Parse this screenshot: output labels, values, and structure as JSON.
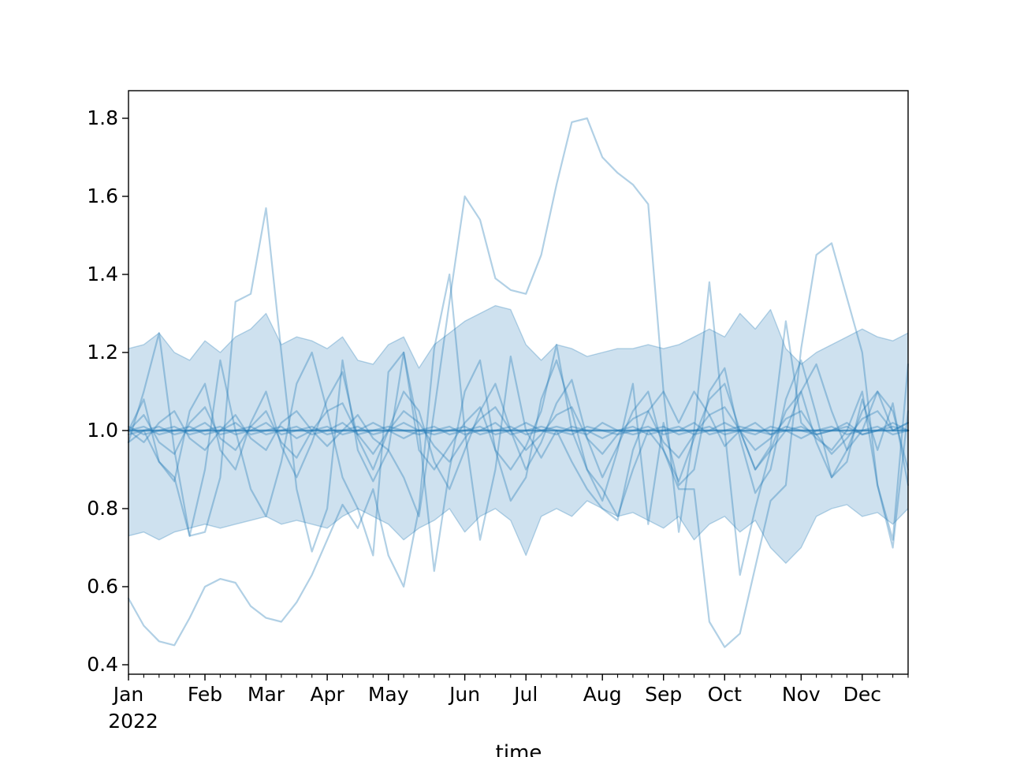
{
  "figure": {
    "xlabel": "time",
    "year_label": "2022",
    "background": "#ffffff",
    "axis_color": "#000000"
  },
  "chart_data": {
    "type": "line",
    "title": "",
    "xlabel": "time",
    "ylabel": "",
    "legend": "none",
    "grid": false,
    "x_axis": {
      "start_date": "2022-01-02",
      "step_days": 7,
      "n_points": 52,
      "tick_labels": [
        "Jan",
        "Feb",
        "Mar",
        "Apr",
        "May",
        "Jun",
        "Jul",
        "Aug",
        "Sep",
        "Oct",
        "Nov",
        "Dec"
      ],
      "tick_day_offsets": [
        0,
        35,
        63,
        91,
        119,
        154,
        182,
        217,
        245,
        273,
        308,
        336
      ],
      "minor_tick_every_days": 7,
      "year": "2022"
    },
    "y_axis": {
      "ticks": [
        0.4,
        0.6,
        0.8,
        1.0,
        1.2,
        1.4,
        1.6,
        1.8
      ],
      "lim": [
        0.376,
        1.871
      ]
    },
    "band": {
      "name": "ensemble-range-band",
      "lower": [
        0.73,
        0.74,
        0.72,
        0.74,
        0.75,
        0.76,
        0.75,
        0.76,
        0.77,
        0.78,
        0.76,
        0.77,
        0.76,
        0.75,
        0.78,
        0.8,
        0.78,
        0.76,
        0.72,
        0.75,
        0.77,
        0.8,
        0.74,
        0.78,
        0.8,
        0.77,
        0.68,
        0.78,
        0.8,
        0.78,
        0.82,
        0.8,
        0.78,
        0.79,
        0.77,
        0.75,
        0.78,
        0.72,
        0.76,
        0.78,
        0.74,
        0.77,
        0.7,
        0.66,
        0.7,
        0.78,
        0.8,
        0.81,
        0.78,
        0.79,
        0.76,
        0.8
      ],
      "upper": [
        1.21,
        1.22,
        1.25,
        1.2,
        1.18,
        1.23,
        1.2,
        1.24,
        1.26,
        1.3,
        1.22,
        1.24,
        1.23,
        1.21,
        1.24,
        1.18,
        1.17,
        1.22,
        1.24,
        1.16,
        1.22,
        1.25,
        1.28,
        1.3,
        1.32,
        1.31,
        1.22,
        1.18,
        1.22,
        1.21,
        1.19,
        1.2,
        1.21,
        1.21,
        1.22,
        1.21,
        1.22,
        1.24,
        1.26,
        1.24,
        1.3,
        1.26,
        1.31,
        1.21,
        1.17,
        1.2,
        1.22,
        1.24,
        1.26,
        1.24,
        1.23,
        1.25
      ]
    },
    "series": [
      {
        "name": "member-low-start",
        "values": [
          0.57,
          0.5,
          0.46,
          0.45,
          0.52,
          0.6,
          0.62,
          0.61,
          0.55,
          0.52,
          0.51,
          0.56,
          0.63,
          0.72,
          0.81,
          0.75,
          0.85,
          0.68,
          0.6,
          0.8,
          1.21,
          1.4,
          1.0,
          0.72,
          0.9,
          1.19,
          1.0,
          0.93,
          1.0,
          0.92,
          0.85,
          0.8,
          0.77,
          0.95,
          1.05,
          1.1,
          1.02,
          1.1,
          1.04,
          0.96,
          1.0,
          0.9,
          0.96,
          1.28,
          1.02,
          0.98,
          0.95,
          1.0,
          1.1,
          0.86,
          0.72,
          1.17
        ]
      },
      {
        "name": "member-march-peak",
        "values": [
          0.97,
          1.0,
          0.92,
          0.88,
          0.73,
          0.74,
          0.88,
          1.33,
          1.35,
          1.57,
          1.2,
          0.85,
          0.69,
          0.8,
          1.18,
          0.95,
          0.87,
          0.95,
          1.2,
          0.95,
          0.9,
          0.96,
          1.02,
          1.06,
          0.95,
          0.9,
          0.96,
          1.05,
          1.22,
          1.0,
          0.9,
          0.85,
          0.78,
          0.9,
          1.0,
          0.95,
          0.85,
          0.85,
          0.51,
          0.445,
          0.48,
          0.65,
          0.82,
          0.86,
          1.21,
          1.45,
          1.48,
          1.34,
          1.2,
          0.86,
          0.7,
          1.05
        ]
      },
      {
        "name": "member-summer-peak",
        "values": [
          1.0,
          0.97,
          1.02,
          1.05,
          0.98,
          0.95,
          1.0,
          1.04,
          0.98,
          0.95,
          1.02,
          1.05,
          1.0,
          0.96,
          1.0,
          1.04,
          0.98,
          0.95,
          0.88,
          0.78,
          1.05,
          1.33,
          1.6,
          1.54,
          1.39,
          1.36,
          1.35,
          1.45,
          1.63,
          1.79,
          1.8,
          1.7,
          1.66,
          1.63,
          1.58,
          1.1,
          0.74,
          1.0,
          1.38,
          1.0,
          0.63,
          0.8,
          0.95,
          1.0,
          1.1,
          1.17,
          1.05,
          0.95,
          1.0,
          1.1,
          1.05,
          0.9
        ]
      },
      {
        "name": "member-zigzag-wide",
        "values": [
          0.97,
          1.1,
          1.25,
          0.95,
          0.73,
          0.9,
          1.18,
          1.0,
          0.85,
          0.78,
          0.92,
          1.12,
          1.2,
          1.05,
          0.88,
          0.8,
          0.68,
          1.15,
          1.2,
          1.0,
          0.64,
          0.9,
          1.1,
          1.18,
          0.95,
          0.82,
          0.88,
          1.08,
          1.18,
          1.05,
          0.9,
          0.82,
          0.95,
          1.12,
          0.76,
          1.02,
          0.86,
          0.9,
          1.1,
          1.16,
          0.98,
          0.84,
          0.9,
          1.08,
          1.18,
          1.04,
          0.88,
          0.92,
          1.08,
          0.95,
          1.07,
          0.86
        ]
      },
      {
        "name": "member-zigzag-medium",
        "values": [
          1.0,
          1.08,
          0.92,
          0.87,
          1.05,
          1.12,
          0.95,
          0.9,
          1.02,
          1.1,
          0.96,
          0.88,
          0.97,
          1.08,
          1.15,
          0.98,
          0.9,
          1.0,
          1.1,
          1.05,
          0.92,
          0.85,
          0.95,
          1.05,
          1.12,
          1.0,
          0.9,
          0.97,
          1.07,
          1.13,
          0.98,
          0.88,
          0.96,
          1.05,
          1.1,
          0.95,
          0.87,
          0.98,
          1.08,
          1.12,
          1.0,
          0.9,
          0.95,
          1.05,
          1.1,
          0.97,
          0.88,
          0.95,
          1.05,
          1.1,
          1.0,
          1.02
        ]
      },
      {
        "name": "member-zigzag-small",
        "values": [
          1.0,
          1.04,
          0.97,
          0.94,
          1.02,
          1.06,
          0.98,
          0.95,
          1.01,
          1.05,
          0.97,
          0.93,
          1.0,
          1.05,
          1.07,
          0.99,
          0.94,
          1.0,
          1.05,
          1.02,
          0.96,
          0.92,
          0.98,
          1.03,
          1.06,
          1.0,
          0.95,
          0.99,
          1.04,
          1.06,
          0.98,
          0.94,
          0.99,
          1.03,
          1.05,
          0.97,
          0.93,
          0.99,
          1.04,
          1.06,
          1.0,
          0.95,
          0.98,
          1.03,
          1.05,
          0.99,
          0.94,
          0.98,
          1.03,
          1.05,
          1.0,
          1.02
        ]
      },
      {
        "name": "member-tight-1",
        "values": [
          1.0,
          1.01,
          0.99,
          1.0,
          1.01,
          0.99,
          1.0,
          1.02,
          0.99,
          1.0,
          1.01,
          0.98,
          1.0,
          1.01,
          0.99,
          1.0,
          1.02,
          1.0,
          0.98,
          1.0,
          1.01,
          0.99,
          1.0,
          1.01,
          0.99,
          1.0,
          1.02,
          1.0,
          0.99,
          1.01,
          1.0,
          0.98,
          1.0,
          1.01,
          0.99,
          1.0,
          1.01,
          0.99,
          1.0,
          1.02,
          1.0,
          0.99,
          1.01,
          1.0,
          0.98,
          1.0,
          1.01,
          0.99,
          1.0,
          1.01,
          0.99,
          1.0
        ]
      },
      {
        "name": "member-tight-2",
        "values": [
          0.99,
          1.0,
          1.01,
          0.99,
          1.0,
          1.02,
          0.99,
          1.0,
          1.01,
          0.99,
          1.0,
          1.01,
          0.99,
          1.0,
          1.02,
          0.99,
          1.0,
          1.01,
          1.0,
          0.99,
          1.0,
          1.01,
          0.99,
          1.0,
          1.02,
          0.99,
          1.0,
          1.01,
          1.0,
          0.99,
          1.01,
          1.0,
          0.99,
          1.0,
          1.01,
          0.99,
          1.0,
          1.02,
          0.99,
          1.0,
          1.01,
          1.0,
          0.99,
          1.01,
          1.0,
          0.99,
          1.0,
          1.02,
          0.99,
          1.0,
          1.01,
          1.0
        ]
      },
      {
        "name": "member-tight-3",
        "values": [
          1.01,
          0.99,
          1.0,
          1.01,
          0.99,
          1.0,
          1.01,
          0.99,
          1.0,
          1.02,
          0.99,
          1.0,
          1.01,
          0.99,
          1.0,
          1.01,
          0.99,
          1.0,
          1.02,
          1.0,
          0.99,
          1.0,
          1.01,
          0.99,
          1.0,
          1.01,
          0.99,
          1.0,
          1.01,
          1.0,
          0.99,
          1.02,
          1.0,
          0.99,
          1.0,
          1.01,
          0.99,
          1.0,
          1.01,
          0.99,
          1.0,
          1.02,
          0.99,
          1.0,
          1.01,
          0.99,
          1.0,
          1.01,
          0.99,
          1.0,
          1.02,
          1.0
        ]
      },
      {
        "name": "member-core-unity",
        "values": [
          1.0,
          1.0,
          1.0,
          1.0,
          1.0,
          1.0,
          1.0,
          1.0,
          1.0,
          1.0,
          1.0,
          1.0,
          1.0,
          1.0,
          1.0,
          1.0,
          1.0,
          1.0,
          1.0,
          1.0,
          1.0,
          1.0,
          1.0,
          1.0,
          1.0,
          1.0,
          1.0,
          1.0,
          1.0,
          1.0,
          1.0,
          1.0,
          1.0,
          1.0,
          1.0,
          1.0,
          1.0,
          1.0,
          1.0,
          1.0,
          1.0,
          1.0,
          1.0,
          1.0,
          1.0,
          1.0,
          1.0,
          1.0,
          1.0,
          1.0,
          1.0,
          1.0
        ]
      }
    ],
    "style": {
      "line_color": "#1f77b4",
      "line_alpha": 0.35,
      "line_width": 2.2,
      "core_alpha": 0.7,
      "core_width": 2.6,
      "band_alpha": 0.22,
      "band_edge_alpha": 0.3
    }
  }
}
